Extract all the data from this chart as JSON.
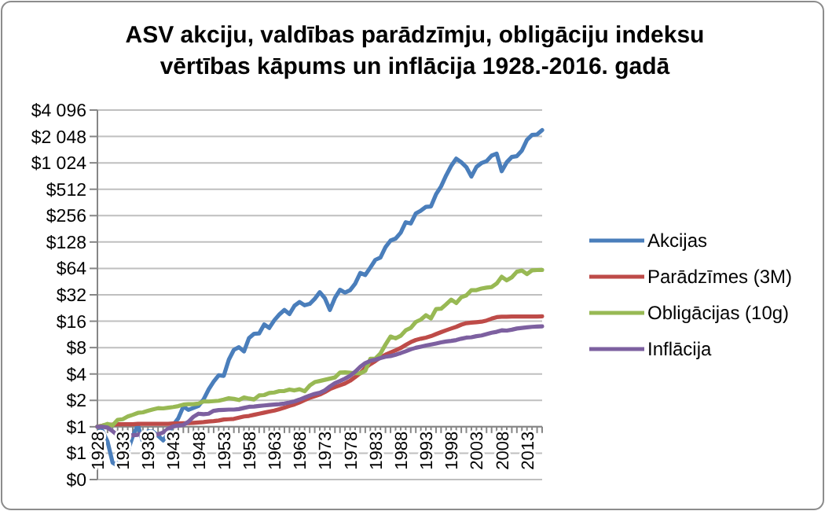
{
  "chart_data": {
    "type": "line",
    "title": "ASV akciju, valdības parādzīmju, obligāciju indeksu\nvērtības kāpums un inflācija 1928.-2016. gadā",
    "categories": [
      "1928",
      null,
      null,
      null,
      null,
      "1933",
      null,
      null,
      null,
      null,
      "1938",
      null,
      null,
      null,
      null,
      "1943",
      null,
      null,
      null,
      null,
      "1948",
      null,
      null,
      null,
      null,
      "1953",
      null,
      null,
      null,
      null,
      "1958",
      null,
      null,
      null,
      null,
      "1963",
      null,
      null,
      null,
      null,
      "1968",
      null,
      null,
      null,
      null,
      "1973",
      null,
      null,
      null,
      null,
      "1978",
      null,
      null,
      null,
      null,
      "1983",
      null,
      null,
      null,
      null,
      "1988",
      null,
      null,
      null,
      null,
      "1993",
      null,
      null,
      null,
      null,
      "1998",
      null,
      null,
      null,
      null,
      "2003",
      null,
      null,
      null,
      null,
      "2008",
      null,
      null,
      null,
      null,
      "2013",
      null,
      null,
      null
    ],
    "series": [
      {
        "name": "Akcijas",
        "color": "#4a7ebb",
        "values": [
          1.0,
          0.9,
          0.68,
          0.39,
          0.36,
          0.55,
          0.53,
          0.78,
          1.05,
          0.67,
          0.89,
          0.88,
          0.79,
          0.7,
          0.84,
          1.05,
          1.25,
          1.7,
          1.56,
          1.64,
          1.73,
          2.05,
          2.66,
          3.28,
          3.86,
          3.81,
          5.82,
          7.55,
          8.09,
          7.22,
          10.3,
          11.5,
          11.6,
          14.7,
          13.4,
          16.4,
          19.1,
          21.5,
          19.3,
          24.0,
          26.5,
          24.3,
          25.2,
          28.8,
          34.3,
          29.3,
          21.5,
          29.5,
          36.5,
          33.9,
          36.1,
          42.8,
          56.7,
          53.9,
          65.4,
          80.2,
          85.2,
          112,
          133,
          140,
          163,
          215,
          208,
          271,
          292,
          322,
          326,
          448,
          551,
          735,
          945,
          1144,
          1040,
          916,
          714,
          919,
          1019,
          1069,
          1237,
          1305,
          822,
          1040,
          1196,
          1222,
          1417,
          1876,
          2132,
          2160,
          2418
        ]
      },
      {
        "name": "Parādzīmes (3M)",
        "color": "#be4b48",
        "values": [
          1.0,
          1.03,
          1.05,
          1.06,
          1.07,
          1.07,
          1.07,
          1.07,
          1.08,
          1.08,
          1.08,
          1.08,
          1.08,
          1.08,
          1.08,
          1.09,
          1.09,
          1.1,
          1.1,
          1.11,
          1.12,
          1.13,
          1.15,
          1.16,
          1.18,
          1.21,
          1.22,
          1.23,
          1.27,
          1.31,
          1.33,
          1.37,
          1.41,
          1.45,
          1.49,
          1.53,
          1.59,
          1.65,
          1.73,
          1.8,
          1.9,
          2.02,
          2.14,
          2.23,
          2.33,
          2.49,
          2.69,
          2.84,
          2.97,
          3.12,
          3.35,
          3.69,
          4.09,
          4.69,
          5.18,
          5.62,
          6.18,
          6.64,
          7.02,
          7.43,
          7.91,
          8.57,
          9.24,
          9.76,
          10.1,
          10.4,
          10.8,
          11.4,
          12.0,
          12.6,
          13.2,
          13.8,
          14.6,
          15.2,
          15.4,
          15.6,
          15.8,
          16.3,
          17.1,
          17.8,
          18.0,
          18.0,
          18.1,
          18.1,
          18.1,
          18.1,
          18.1,
          18.1,
          18.2
        ]
      },
      {
        "name": "Obligācijas (10g)",
        "color": "#98b954",
        "values": [
          1.0,
          1.03,
          1.08,
          1.04,
          1.2,
          1.22,
          1.31,
          1.37,
          1.44,
          1.46,
          1.52,
          1.58,
          1.63,
          1.62,
          1.65,
          1.68,
          1.72,
          1.79,
          1.81,
          1.81,
          1.84,
          1.95,
          1.94,
          1.96,
          1.98,
          2.04,
          2.12,
          2.08,
          2.02,
          2.16,
          2.1,
          2.05,
          2.28,
          2.3,
          2.43,
          2.46,
          2.55,
          2.56,
          2.66,
          2.6,
          2.68,
          2.54,
          2.95,
          3.23,
          3.33,
          3.43,
          3.54,
          3.65,
          4.16,
          4.18,
          4.13,
          4.08,
          4.07,
          4.35,
          5.96,
          6.01,
          6.86,
          8.64,
          10.7,
          10.2,
          10.9,
          12.6,
          13.4,
          15.7,
          16.7,
          18.7,
          17.2,
          22.0,
          22.2,
          24.9,
          28.2,
          25.8,
          30.0,
          31.5,
          36.2,
          36.2,
          37.7,
          38.6,
          39.2,
          43.0,
          51.4,
          46.8,
          50.6,
          58.7,
          60.5,
          55.1,
          60.8,
          61.3,
          61.5
        ]
      },
      {
        "name": "Inflācija",
        "color": "#7d60a0",
        "values": [
          1.0,
          1.0,
          0.98,
          0.89,
          0.8,
          0.76,
          0.78,
          0.8,
          0.81,
          0.84,
          0.82,
          0.81,
          0.82,
          0.86,
          0.95,
          1.01,
          1.03,
          1.05,
          1.14,
          1.3,
          1.41,
          1.39,
          1.41,
          1.52,
          1.55,
          1.56,
          1.57,
          1.57,
          1.59,
          1.64,
          1.69,
          1.7,
          1.73,
          1.75,
          1.77,
          1.79,
          1.81,
          1.84,
          1.89,
          1.95,
          2.04,
          2.15,
          2.27,
          2.37,
          2.44,
          2.6,
          2.88,
          3.15,
          3.33,
          3.54,
          3.81,
          4.25,
          4.82,
          5.32,
          5.64,
          5.82,
          6.08,
          6.29,
          6.41,
          6.64,
          6.92,
          7.25,
          7.64,
          7.96,
          8.2,
          8.45,
          8.67,
          8.91,
          9.18,
          9.39,
          9.53,
          9.74,
          10.1,
          10.4,
          10.5,
          10.8,
          11.0,
          11.4,
          11.8,
          12.1,
          12.6,
          12.5,
          12.8,
          13.2,
          13.4,
          13.6,
          13.8,
          13.9,
          14.0
        ]
      }
    ],
    "log": "y",
    "ylim": [
      0.25,
      4096
    ],
    "yticks": [
      {
        "value": 0.25,
        "label": "$0"
      },
      {
        "value": 0.5,
        "label": "$1"
      },
      {
        "value": 1,
        "label": "$1"
      },
      {
        "value": 2,
        "label": "$2"
      },
      {
        "value": 4,
        "label": "$4"
      },
      {
        "value": 8,
        "label": "$8"
      },
      {
        "value": 16,
        "label": "$16"
      },
      {
        "value": 32,
        "label": "$32"
      },
      {
        "value": 64,
        "label": "$64"
      },
      {
        "value": 128,
        "label": "$128"
      },
      {
        "value": 256,
        "label": "$256"
      },
      {
        "value": 512,
        "label": "$512"
      },
      {
        "value": 1024,
        "label": "$1 024"
      },
      {
        "value": 2048,
        "label": "$2 048"
      },
      {
        "value": 4096,
        "label": "$4 096"
      }
    ],
    "grid": "y",
    "legend": "right",
    "marker": "none",
    "line_style": "solid"
  }
}
